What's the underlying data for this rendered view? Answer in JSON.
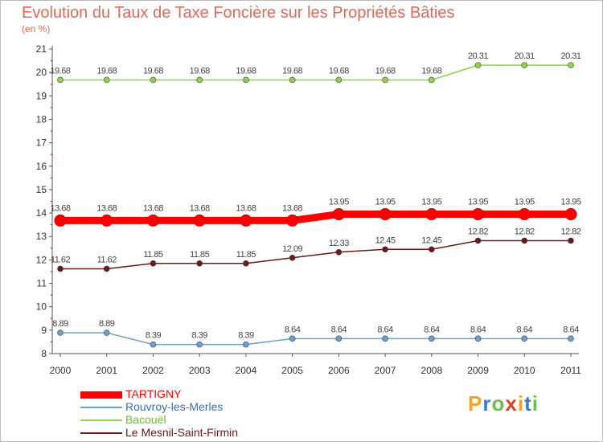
{
  "chart_data": {
    "type": "line",
    "title": "Evolution du Taux de Taxe Foncière sur les Propriétés Bâties",
    "unit_label": "(en %)",
    "xlabel": "",
    "ylabel": "",
    "ylim": [
      8,
      21
    ],
    "yticks": [
      "8",
      "9",
      "10",
      "11",
      "12",
      "13",
      "14",
      "15",
      "16",
      "17",
      "18",
      "19",
      "20",
      "21"
    ],
    "categories": [
      "2000",
      "2001",
      "2002",
      "2003",
      "2004",
      "2005",
      "2006",
      "2007",
      "2008",
      "2009",
      "2010",
      "2011"
    ],
    "series": [
      {
        "name": "TARTIGNY",
        "color": "#ff0000",
        "emphasis": true,
        "values": [
          13.68,
          13.68,
          13.68,
          13.68,
          13.68,
          13.68,
          13.95,
          13.95,
          13.95,
          13.95,
          13.95,
          13.95
        ],
        "labels": [
          "13.68",
          "13.68",
          "13.68",
          "13.68",
          "13.68",
          "13.68",
          "13.95",
          "13.95",
          "13.95",
          "13.95",
          "13.95",
          "13.95"
        ]
      },
      {
        "name": "Rouvroy-les-Merles",
        "color": "#6aa0cf",
        "emphasis": false,
        "values": [
          8.89,
          8.89,
          8.39,
          8.39,
          8.39,
          8.64,
          8.64,
          8.64,
          8.64,
          8.64,
          8.64,
          8.64
        ],
        "labels": [
          "8.89",
          "8.89",
          "8.39",
          "8.39",
          "8.39",
          "8.64",
          "8.64",
          "8.64",
          "8.64",
          "8.64",
          "8.64",
          "8.64"
        ]
      },
      {
        "name": "Bacouël",
        "color": "#8fd44a",
        "emphasis": false,
        "values": [
          19.68,
          19.68,
          19.68,
          19.68,
          19.68,
          19.68,
          19.68,
          19.68,
          19.68,
          20.31,
          20.31,
          20.31
        ],
        "labels": [
          "19.68",
          "19.68",
          "19.68",
          "19.68",
          "19.68",
          "19.68",
          "19.68",
          "19.68",
          "19.68",
          "20.31",
          "20.31",
          "20.31"
        ]
      },
      {
        "name": "Le Mesnil-Saint-Firmin",
        "color": "#6b1a1a",
        "emphasis": false,
        "values": [
          11.62,
          11.62,
          11.85,
          11.85,
          11.85,
          12.09,
          12.33,
          12.45,
          12.45,
          12.82,
          12.82,
          12.82
        ],
        "labels": [
          "11.62",
          "11.62",
          "11.85",
          "11.85",
          "11.85",
          "12.09",
          "12.33",
          "12.45",
          "12.45",
          "12.82",
          "12.82",
          "12.82"
        ]
      }
    ],
    "legend_position": "bottom-left",
    "grid": false
  },
  "logo": {
    "letters": [
      "P",
      "r",
      "o",
      "x",
      "i",
      "t",
      "i"
    ],
    "colors": [
      "#f2a12a",
      "#3a7bd5",
      "#6cc04a",
      "#e0402a",
      "#f2a12a",
      "#3a7bd5",
      "#6cc04a"
    ]
  }
}
